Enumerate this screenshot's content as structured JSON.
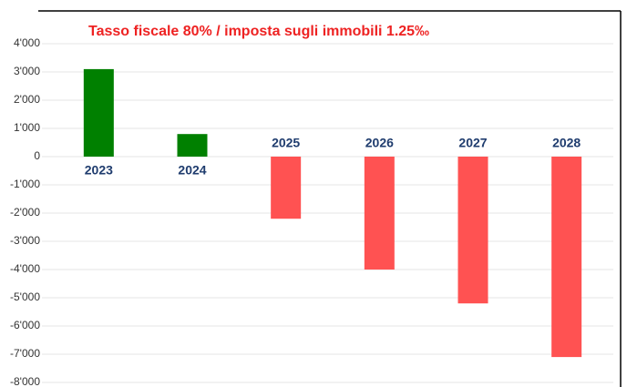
{
  "chart_data": {
    "type": "bar",
    "title": "Tasso fiscale 80% / imposta sugli immobili 1.25‰",
    "categories": [
      "2023",
      "2024",
      "2025",
      "2026",
      "2027",
      "2028"
    ],
    "values": [
      3100,
      800,
      -2200,
      -4000,
      -5200,
      -7100
    ],
    "colors": [
      "#008000",
      "#008000",
      "#ff5252",
      "#ff5252",
      "#ff5252",
      "#ff5252"
    ],
    "ylim": [
      -8000,
      4000
    ],
    "yticks": [
      {
        "value": 4000,
        "label": "4'000"
      },
      {
        "value": 3000,
        "label": "3'000"
      },
      {
        "value": 2000,
        "label": "2'000"
      },
      {
        "value": 1000,
        "label": "1'000"
      },
      0,
      {
        "value": -1000,
        "label": "-1'000"
      },
      {
        "value": -2000,
        "label": "-2'000"
      },
      {
        "value": -3000,
        "label": "-3'000"
      },
      {
        "value": -4000,
        "label": "-4'000"
      },
      {
        "value": -5000,
        "label": "-5'000"
      },
      {
        "value": -6000,
        "label": "-6'000"
      },
      {
        "value": -7000,
        "label": "-7'000"
      },
      {
        "value": -8000,
        "label": "-8'000"
      }
    ],
    "grid": true
  }
}
